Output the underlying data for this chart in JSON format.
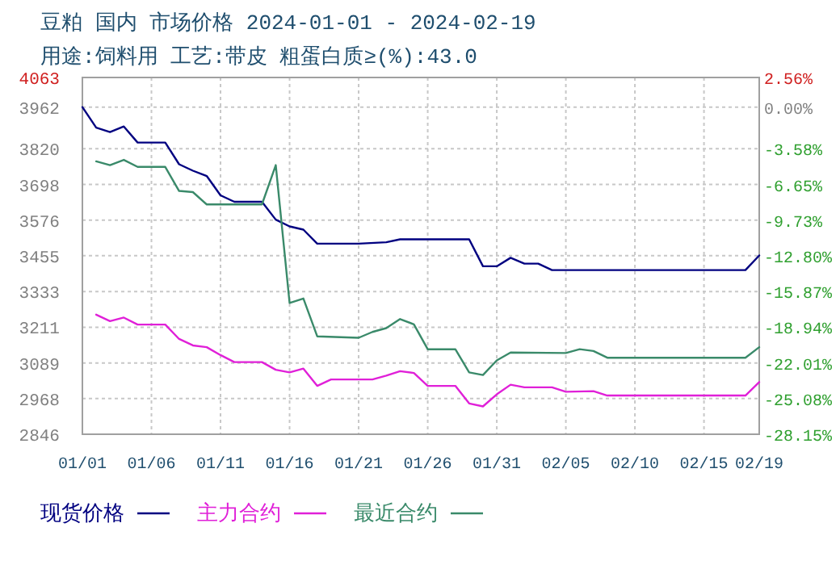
{
  "chart_data": {
    "type": "line",
    "title": "豆粕 国内 市场价格 2024-01-01 - 2024-02-19",
    "subtitle": "用途:饲料用 工艺:带皮 粗蛋白质≥(%):43.0",
    "xlim": [
      "2024-01-01",
      "2024-02-19"
    ],
    "xticks": [
      {
        "value": "2024-01-01",
        "label": "01/01"
      },
      {
        "value": "2024-01-06",
        "label": "01/06"
      },
      {
        "value": "2024-01-11",
        "label": "01/11"
      },
      {
        "value": "2024-01-16",
        "label": "01/16"
      },
      {
        "value": "2024-01-21",
        "label": "01/21"
      },
      {
        "value": "2024-01-26",
        "label": "01/26"
      },
      {
        "value": "2024-01-31",
        "label": "01/31"
      },
      {
        "value": "2024-02-05",
        "label": "02/05"
      },
      {
        "value": "2024-02-10",
        "label": "02/10"
      },
      {
        "value": "2024-02-15",
        "label": "02/15"
      },
      {
        "value": "2024-02-19",
        "label": "02/19"
      }
    ],
    "ylim": [
      2846,
      4063
    ],
    "yticks": [
      2846,
      2968,
      3089,
      3211,
      3333,
      3455,
      3576,
      3698,
      3820,
      3962,
      4063
    ],
    "y2lim": [
      -28.15,
      2.56
    ],
    "y2ticks": [
      {
        "value": -28.15,
        "label": "-28.15%"
      },
      {
        "value": -25.08,
        "label": "-25.08%"
      },
      {
        "value": -22.01,
        "label": "-22.01%"
      },
      {
        "value": -18.94,
        "label": "-18.94%"
      },
      {
        "value": -15.87,
        "label": "-15.87%"
      },
      {
        "value": -12.8,
        "label": "-12.80%"
      },
      {
        "value": -9.73,
        "label": "-9.73%"
      },
      {
        "value": -6.65,
        "label": "-6.65%"
      },
      {
        "value": -3.58,
        "label": "-3.58%"
      },
      {
        "value": 0,
        "label": "0.00%"
      },
      {
        "value": 2.56,
        "label": "2.56%"
      }
    ],
    "grid": true,
    "legend": "bottom",
    "line_style": "solid",
    "marker": "none",
    "series": [
      {
        "name": "现货价格",
        "color": "#000080",
        "x": [
          "2024-01-01",
          "2024-01-02",
          "2024-01-03",
          "2024-01-04",
          "2024-01-05",
          "2024-01-07",
          "2024-01-08",
          "2024-01-09",
          "2024-01-10",
          "2024-01-11",
          "2024-01-12",
          "2024-01-14",
          "2024-01-15",
          "2024-01-16",
          "2024-01-17",
          "2024-01-18",
          "2024-01-21",
          "2024-01-23",
          "2024-01-24",
          "2024-01-29",
          "2024-01-30",
          "2024-01-31",
          "2024-02-01",
          "2024-02-02",
          "2024-02-03",
          "2024-02-04",
          "2024-02-18",
          "2024-02-19"
        ],
        "values": [
          3962,
          3892,
          3877,
          3896,
          3841,
          3841,
          3767,
          3745,
          3727,
          3661,
          3639,
          3639,
          3578,
          3555,
          3544,
          3496,
          3496,
          3501,
          3511,
          3511,
          3419,
          3419,
          3448,
          3428,
          3428,
          3406,
          3406,
          3456
        ]
      },
      {
        "name": "主力合约",
        "color": "#e020d8",
        "x": [
          "2024-01-02",
          "2024-01-03",
          "2024-01-04",
          "2024-01-05",
          "2024-01-07",
          "2024-01-08",
          "2024-01-09",
          "2024-01-10",
          "2024-01-11",
          "2024-01-12",
          "2024-01-14",
          "2024-01-15",
          "2024-01-16",
          "2024-01-17",
          "2024-01-18",
          "2024-01-19",
          "2024-01-22",
          "2024-01-23",
          "2024-01-24",
          "2024-01-25",
          "2024-01-26",
          "2024-01-28",
          "2024-01-29",
          "2024-01-30",
          "2024-01-31",
          "2024-02-01",
          "2024-02-02",
          "2024-02-04",
          "2024-02-05",
          "2024-02-07",
          "2024-02-08",
          "2024-02-18",
          "2024-02-19"
        ],
        "values": [
          3254,
          3232,
          3244,
          3220,
          3220,
          3171,
          3149,
          3143,
          3116,
          3092,
          3092,
          3066,
          3057,
          3070,
          3011,
          3033,
          3033,
          3046,
          3061,
          3055,
          3011,
          3011,
          2951,
          2941,
          2982,
          3015,
          3006,
          3006,
          2991,
          2993,
          2978,
          2978,
          3024
        ]
      },
      {
        "name": "最近合约",
        "color": "#3a8a6a",
        "x": [
          "2024-01-02",
          "2024-01-03",
          "2024-01-04",
          "2024-01-05",
          "2024-01-07",
          "2024-01-08",
          "2024-01-09",
          "2024-01-10",
          "2024-01-14",
          "2024-01-15",
          "2024-01-16",
          "2024-01-17",
          "2024-01-18",
          "2024-01-21",
          "2024-01-22",
          "2024-01-23",
          "2024-01-24",
          "2024-01-25",
          "2024-01-26",
          "2024-01-28",
          "2024-01-29",
          "2024-01-30",
          "2024-01-31",
          "2024-02-01",
          "2024-02-05",
          "2024-02-06",
          "2024-02-07",
          "2024-02-08",
          "2024-02-18",
          "2024-02-19"
        ],
        "values": [
          3777,
          3764,
          3782,
          3758,
          3758,
          3676,
          3672,
          3630,
          3630,
          3764,
          3294,
          3309,
          3180,
          3175,
          3195,
          3208,
          3239,
          3221,
          3136,
          3136,
          3057,
          3048,
          3098,
          3125,
          3123,
          3136,
          3130,
          3107,
          3107,
          3143
        ]
      }
    ]
  }
}
